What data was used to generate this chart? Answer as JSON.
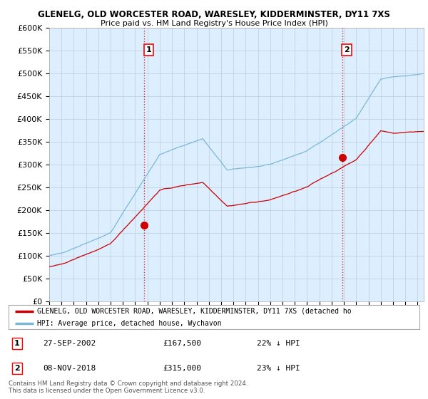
{
  "title1": "GLENELG, OLD WORCESTER ROAD, WARESLEY, KIDDERMINSTER, DY11 7XS",
  "title2": "Price paid vs. HM Land Registry's House Price Index (HPI)",
  "ylabel_ticks": [
    "£0",
    "£50K",
    "£100K",
    "£150K",
    "£200K",
    "£250K",
    "£300K",
    "£350K",
    "£400K",
    "£450K",
    "£500K",
    "£550K",
    "£600K"
  ],
  "ytick_values": [
    0,
    50000,
    100000,
    150000,
    200000,
    250000,
    300000,
    350000,
    400000,
    450000,
    500000,
    550000,
    600000
  ],
  "ylim": [
    0,
    600000
  ],
  "xlim_start": 1995.0,
  "xlim_end": 2025.5,
  "hpi_color": "#7ab8d9",
  "price_color": "#cc0000",
  "chart_bg": "#ddeeff",
  "marker1_date": 2002.74,
  "marker1_price": 167500,
  "marker2_date": 2018.85,
  "marker2_price": 315000,
  "legend_price_label": "GLENELG, OLD WORCESTER ROAD, WARESLEY, KIDDERMINSTER, DY11 7XS (detached ho",
  "legend_hpi_label": "HPI: Average price, detached house, Wychavon",
  "annotation1_text": "1",
  "annotation2_text": "2",
  "table_data": [
    [
      "1",
      "27-SEP-2002",
      "£167,500",
      "22% ↓ HPI"
    ],
    [
      "2",
      "08-NOV-2018",
      "£315,000",
      "23% ↓ HPI"
    ]
  ],
  "footnote": "Contains HM Land Registry data © Crown copyright and database right 2024.\nThis data is licensed under the Open Government Licence v3.0.",
  "background_color": "#ffffff",
  "grid_color": "#bbccdd"
}
